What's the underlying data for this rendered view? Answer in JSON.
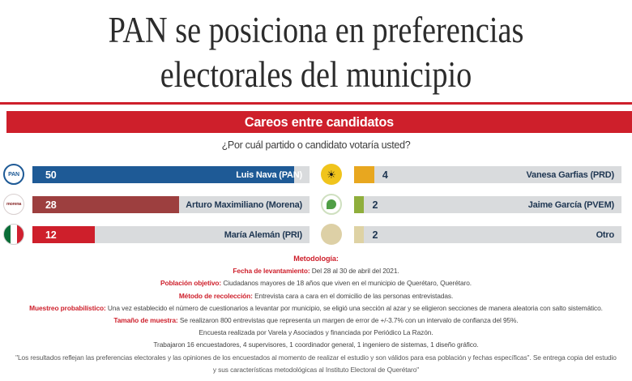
{
  "page": {
    "title_line1": "PAN se posiciona en preferencias",
    "title_line2": "electorales del municipio"
  },
  "banner": {
    "label": "Careos entre candidatos"
  },
  "question": "¿Por cuál partido o candidato votaría usted?",
  "chart_data": {
    "type": "bar",
    "title": "Careos entre candidatos",
    "subtitle": "¿Por cuál partido o candidato votaría usted?",
    "categories": [
      "Luis Nava (PAN)",
      "Arturo Maximiliano (Morena)",
      "María Alemán (PRI)",
      "Vanesa Garfias (PRD)",
      "Jaime García (PVEM)",
      "Otro"
    ],
    "values": [
      50,
      28,
      12,
      4,
      2,
      2
    ],
    "parties": [
      "PAN",
      "Morena",
      "PRI",
      "PRD",
      "PVEM",
      "Otro"
    ],
    "colors": [
      "#1e5a96",
      "#9d3f3f",
      "#ce1f2b",
      "#e8a71f",
      "#8fae3c",
      "#ded2a4"
    ],
    "track_color": "#d9dbdd",
    "scale_max": 53,
    "layout": "two-column horizontal bars, values 50/28/12 left column, 4/2/2 right column"
  },
  "icons": {
    "pan_label": "PAN",
    "morena_label": "morena",
    "prd_sun": "☀"
  },
  "colors": {
    "brand_red": "#ce1f2b",
    "navy_text": "#1e3652"
  },
  "methodology": {
    "heading": "Metodología:",
    "lines": [
      {
        "label": "Fecha de levantamiento:",
        "text": " Del 28 al 30 de abril del 2021."
      },
      {
        "label": "Población objetivo:",
        "text": " Ciudadanos mayores de 18 años que viven en el municipio de Querétaro, Querétaro."
      },
      {
        "label": "Método de recolección:",
        "text": " Entrevista cara a cara en el domicilio de las personas entrevistadas."
      },
      {
        "label": "Muestreo probabilístico:",
        "text": " Una vez establecido el número de cuestionarios a levantar por municipio, se eligió una sección al azar y se eligieron secciones de manera aleatoria con salto sistemático."
      },
      {
        "label": "Tamaño de muestra:",
        "text": " Se realizaron 800 entrevistas que representa un margen de error de +/-3.7% con un intervalo de confianza del 95%."
      },
      {
        "label": "",
        "text": "Encuesta realizada por Varela y Asociados y financiada por Periódico La Razón."
      },
      {
        "label": "",
        "text": "Trabajaron 16 encuestadores, 4 supervisores, 1 coordinador general, 1 ingeniero de sistemas, 1 diseño gráfico."
      }
    ],
    "disclaimer": "\"Los resultados reflejan las preferencias electorales y las opiniones de los encuestados al momento de realizar el estudio y son válidos para esa población y fechas específicas\". Se entrega copia del estudio y sus características metodológicas al Instituto Electoral de Querétaro\""
  }
}
